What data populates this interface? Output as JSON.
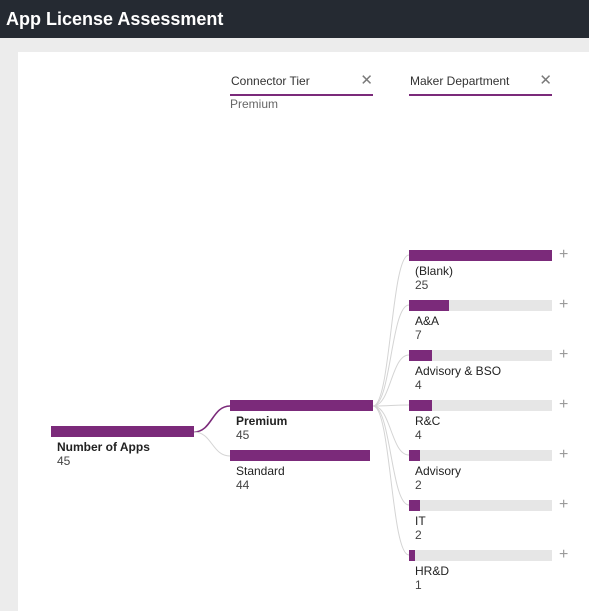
{
  "app": {
    "title": "App License Assessment"
  },
  "accent_color": "#7b2a7a",
  "track_color": "#e6e6e6",
  "levels": [
    {
      "header": "Connector Tier",
      "selected": "Premium",
      "close_icon": "close-icon"
    },
    {
      "header": "Maker Department",
      "close_icon": "close-icon"
    }
  ],
  "root": {
    "label": "Number of Apps",
    "value": "45"
  },
  "tier_nodes": [
    {
      "label": "Premium",
      "value": "45",
      "fraction": 1.0,
      "selected": true
    },
    {
      "label": "Standard",
      "value": "44",
      "fraction": 0.978,
      "selected": false
    }
  ],
  "department_nodes": [
    {
      "label": "(Blank)",
      "value": "25",
      "fraction": 1.0
    },
    {
      "label": "A&A",
      "value": "7",
      "fraction": 0.28
    },
    {
      "label": "Advisory & BSO",
      "value": "4",
      "fraction": 0.16
    },
    {
      "label": "R&C",
      "value": "4",
      "fraction": 0.16
    },
    {
      "label": "Advisory",
      "value": "2",
      "fraction": 0.08
    },
    {
      "label": "IT",
      "value": "2",
      "fraction": 0.08
    },
    {
      "label": "HR&D",
      "value": "1",
      "fraction": 0.04
    }
  ],
  "expand_symbol": "+"
}
